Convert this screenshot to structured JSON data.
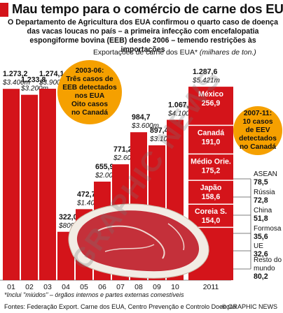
{
  "header": {
    "title": "Mau tempo para o comércio de carne dos EUA",
    "intro": "O Departamento de Agricultura dos EUA confirmou o quarto caso de doença das vacas loucas no país – a primeira infecção com encefalopatia espongiforme bovina (EEB) desde 2006 – temendo restrições às importações"
  },
  "chart_data": {
    "type": "bar",
    "title": "Exportações de carne dos EUA*",
    "units": "(milhares de ton.)",
    "categories": [
      "01",
      "02",
      "03",
      "04",
      "05",
      "06",
      "07",
      "08",
      "09",
      "10",
      "2011"
    ],
    "values": [
      1273.2,
      1233.8,
      1274.1,
      322.0,
      472.7,
      655.9,
      771.2,
      984.7,
      897.4,
      1067.3,
      1287.6
    ],
    "value_labels": [
      "1.273,2",
      "1.233,8",
      "1.274,1",
      "322,0",
      "472,7",
      "655,9",
      "771,2",
      "984,7",
      "897,4",
      "1.067,3",
      "1.287,6"
    ],
    "dollar_labels": [
      "$3.400m",
      "$3.200m",
      "$3.900m",
      "$809m",
      "$1.400m",
      "$2.000m",
      "$2.600m",
      "$3.600m",
      "$3.100m",
      "$4.100m",
      "$5.421m"
    ],
    "bar_color": "#d4141a",
    "label_color": "#ffffff",
    "ylim": [
      0,
      1300
    ],
    "breakdown_2011": [
      {
        "name": "México",
        "value": "256,9",
        "amount": 256.9
      },
      {
        "name": "Canadá",
        "value": "191,0",
        "amount": 191.0
      },
      {
        "name": "Médio Orie.",
        "value": "175,2",
        "amount": 175.2
      },
      {
        "name": "Japão",
        "value": "158,6",
        "amount": 158.6
      },
      {
        "name": "Coreia S.",
        "value": "154,0",
        "amount": 154.0
      }
    ],
    "side_breakdown": [
      {
        "name": "ASEAN",
        "value": "78,5"
      },
      {
        "name": "Rússia",
        "value": "72,8"
      },
      {
        "name": "China",
        "value": "51,8"
      },
      {
        "name": "Formosa",
        "value": "35,6"
      },
      {
        "name": "UE",
        "value": "32,6"
      },
      {
        "name": "Resto do mundo",
        "value": "80,2"
      }
    ],
    "callouts": [
      {
        "lines": [
          "2003-06:",
          "Três casos de",
          "EEB detectados",
          "nos EUA",
          "Oito casos",
          "no Canadá"
        ]
      },
      {
        "lines": [
          "2007-11:",
          "10 casos",
          "de EEV",
          "detectados",
          "no Canadá"
        ]
      }
    ],
    "callout_color": "#f5a000"
  },
  "footer": {
    "footnote": "*Inclui \"miúdos\" – órgãos internos e partes externas comestíveis",
    "sources": "Fontes: Federação Export. Carne dos EUA, Centro Prevenção e Controlo Doenças",
    "credit_symbol": "©",
    "credit_text": " GRAPHIC NEWS"
  },
  "watermark": "GRAPHIC NEWS"
}
